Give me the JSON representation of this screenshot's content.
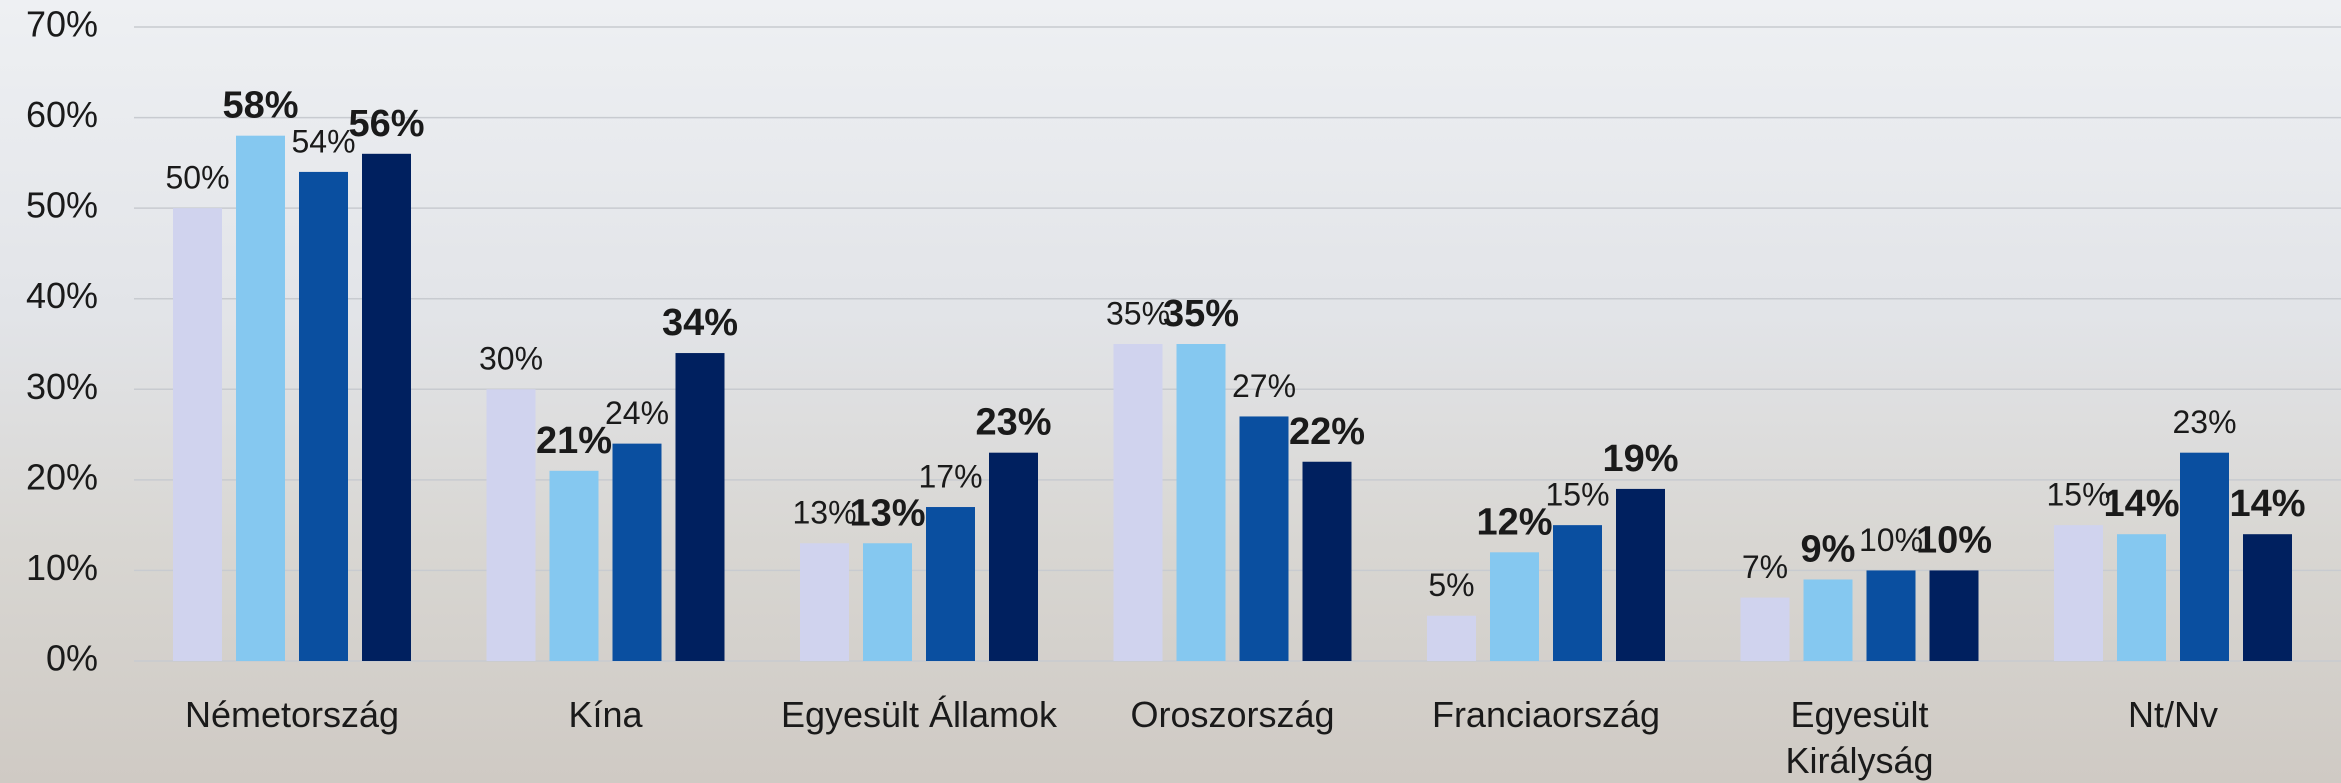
{
  "chart_data": {
    "type": "bar",
    "categories": [
      "Németország",
      "Kína",
      "Egyesült Államok",
      "Oroszország",
      "Franciaország",
      "Egyesült Királyság",
      "Nt/Nv"
    ],
    "series": [
      {
        "color": "#d0d3ee",
        "values": [
          50,
          30,
          13,
          35,
          5,
          7,
          15
        ],
        "value_labels": [
          "50%",
          "30%",
          "13%",
          "35%",
          "5%",
          "7%",
          "15%"
        ]
      },
      {
        "color": "#85c8f0",
        "values": [
          58,
          21,
          13,
          35,
          12,
          9,
          14
        ],
        "value_labels": [
          "58%",
          "21%",
          "13%",
          "35%",
          "12%",
          "9%",
          "14%"
        ]
      },
      {
        "color": "#0a4fa0",
        "values": [
          54,
          24,
          17,
          27,
          15,
          10,
          23
        ],
        "value_labels": [
          "54%",
          "24%",
          "17%",
          "27%",
          "15%",
          "10%",
          "23%"
        ]
      },
      {
        "color": "#00205f",
        "values": [
          56,
          34,
          23,
          22,
          19,
          10,
          14
        ],
        "value_labels": [
          "56%",
          "34%",
          "23%",
          "22%",
          "19%",
          "10%",
          "14%"
        ]
      }
    ],
    "ylim": [
      0,
      70
    ],
    "yticks": [
      {
        "value": 0,
        "label": "0%"
      },
      {
        "value": 10,
        "label": "10%"
      },
      {
        "value": 20,
        "label": "20%"
      },
      {
        "value": 30,
        "label": "30%"
      },
      {
        "value": 40,
        "label": "40%"
      },
      {
        "value": 50,
        "label": "50%"
      },
      {
        "value": 60,
        "label": "60%"
      },
      {
        "value": 70,
        "label": "70%"
      }
    ],
    "grid": true
  }
}
